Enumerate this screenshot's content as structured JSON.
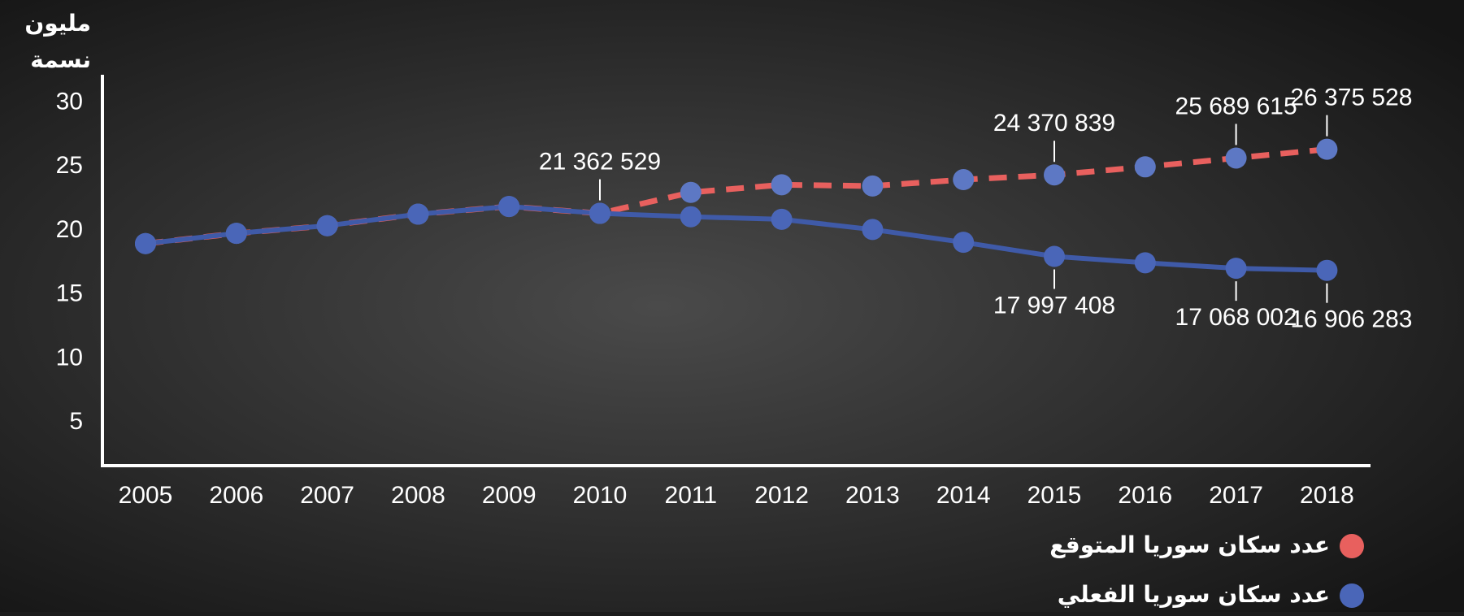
{
  "chart_data": {
    "type": "line",
    "y_label_lines": [
      "مليون",
      "نسمة"
    ],
    "categories": [
      "2005",
      "2006",
      "2007",
      "2008",
      "2009",
      "2010",
      "2011",
      "2012",
      "2013",
      "2014",
      "2015",
      "2016",
      "2017",
      "2018"
    ],
    "ylim": [
      1.7,
      32.2
    ],
    "yticks": [
      5,
      10,
      15,
      20,
      25,
      30
    ],
    "series": [
      {
        "name": "عدد سكان سوريا المتوقع",
        "color": "#e8605e",
        "marker_color": "#5d78c4",
        "dashed": true,
        "values": [
          19.0,
          19.8,
          20.4,
          21.3,
          21.9,
          21.362529,
          23.0,
          23.6,
          23.5,
          24.0,
          24.370839,
          25.0,
          25.689615,
          26.375528
        ],
        "value_labels": [
          null,
          null,
          null,
          null,
          null,
          "21 362 529",
          null,
          null,
          null,
          null,
          "24 370 839",
          null,
          "25 689 615",
          "26 375 528"
        ]
      },
      {
        "name": "عدد سكان سوريا الفعلي",
        "color": "#3f5aa8",
        "marker_color": "#4a66b8",
        "dashed": false,
        "values": [
          19.0,
          19.8,
          20.4,
          21.3,
          21.9,
          21.362529,
          21.1,
          20.9,
          20.1,
          19.1,
          17.997408,
          17.5,
          17.068002,
          16.906283
        ],
        "value_labels": [
          null,
          null,
          null,
          null,
          null,
          null,
          null,
          null,
          null,
          null,
          "17 997 408",
          null,
          "17 068 002",
          "16 906 283"
        ]
      }
    ]
  }
}
